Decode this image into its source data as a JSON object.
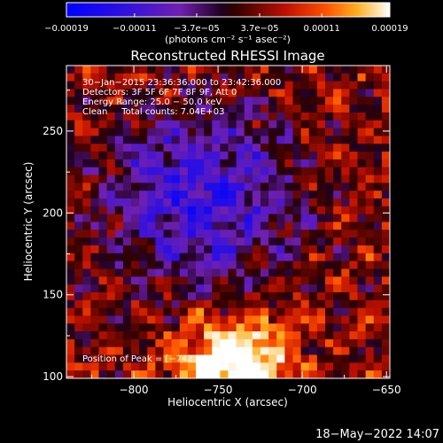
{
  "chart_data": {
    "type": "heatmap",
    "title": "Reconstructed RHESSI Image",
    "xlabel": "Heliocentric X (arcsec)",
    "ylabel": "Heliocentric Y (arcsec)",
    "xlim": [
      -840,
      -648
    ],
    "ylim": [
      99,
      290
    ],
    "xticks": [
      -800,
      -750,
      -700,
      -650
    ],
    "xtick_labels": [
      "−800",
      "−750",
      "−700",
      "−650"
    ],
    "yticks": [
      100,
      150,
      200,
      250
    ],
    "ytick_labels": [
      "100",
      "150",
      "200",
      "250"
    ],
    "colorbar": {
      "unit_label": "(photons cm⁻² s⁻¹ asec⁻²)",
      "ticks": [
        -0.00019,
        -0.00011,
        -3.7e-05,
        3.7e-05,
        0.00011,
        0.00019
      ],
      "tick_labels": [
        "−0.00019",
        "−0.00011",
        "−3.7e−05",
        "3.7e−05",
        "0.00011",
        "0.00019"
      ],
      "range": [
        -0.00019,
        0.00019
      ]
    },
    "annotations": [
      "30−Jan−2015 23:36:36.000 to 23:42:36.000",
      "Detectors: 3F 5F 6F 7F 8F 9F, Att 0",
      "Energy Range: 25.0 − 50.0 keV",
      "Clean     Total counts: 7.04E+03"
    ],
    "peak_label": "Position of Peak = [−742,",
    "peak_value": [
      -742,
      104
    ],
    "grid": false
  },
  "footer": {
    "timestamp": "18−May−2022 14:07"
  },
  "colors": {
    "background": "#000000",
    "axis": "#ffffff",
    "text": "#ffffff"
  }
}
